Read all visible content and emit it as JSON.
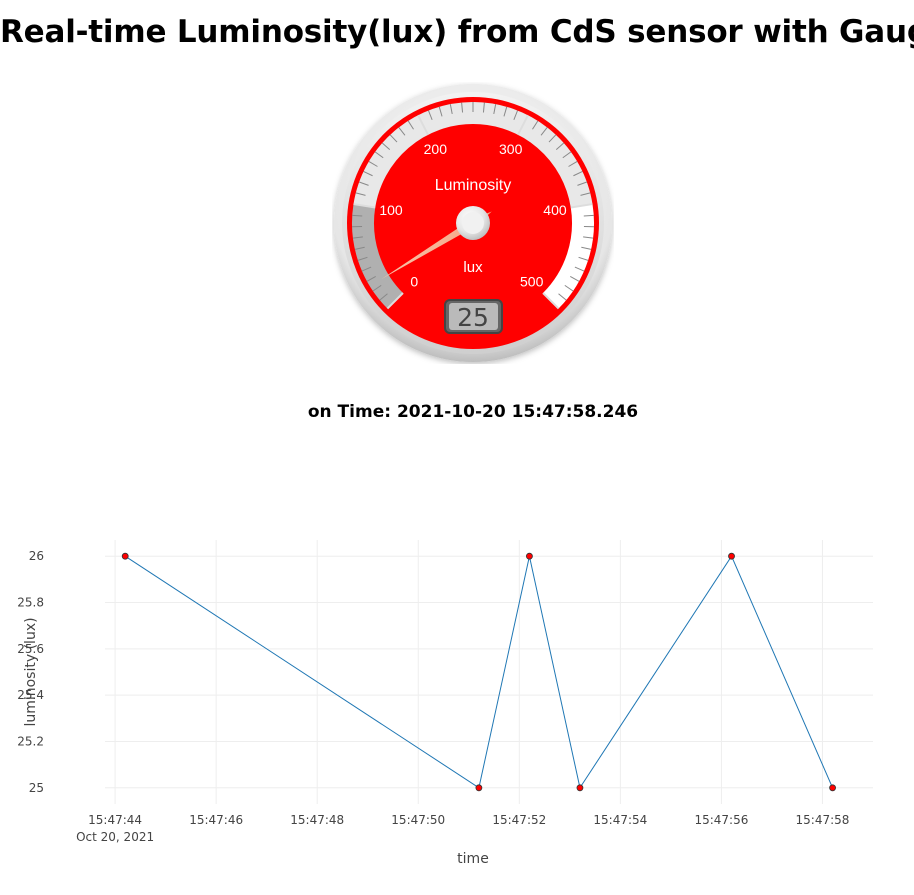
{
  "page": {
    "title": "Real-time Luminosity(lux) from CdS sensor with Gauge",
    "time_prefix": "on Time: ",
    "time_value": "2021-10-20 15:47:58.246"
  },
  "gauge": {
    "title": "Luminosity",
    "units": "lux",
    "min": 0,
    "max": 500,
    "value": 25,
    "value_text": "25",
    "major_ticks": [
      "0",
      "100",
      "200",
      "300",
      "400",
      "500"
    ],
    "colors": {
      "plate": "#ff0000",
      "highlight_low": "#b0b0b0",
      "highlight_mid": "#e8e8e8",
      "highlight_high": "#ffffff",
      "needle": "#f4a584",
      "text": "#ffffff"
    }
  },
  "chart_data": {
    "type": "line",
    "xlabel": "time",
    "ylabel": "luminosity (lux)",
    "date_label": "Oct 20, 2021",
    "x_tick_labels": [
      "15:47:44",
      "15:47:46",
      "15:47:48",
      "15:47:50",
      "15:47:52",
      "15:47:54",
      "15:47:56",
      "15:47:58"
    ],
    "y_tick_labels": [
      "25",
      "25.2",
      "25.4",
      "25.6",
      "25.8",
      "26"
    ],
    "y_ticks": [
      25,
      25.2,
      25.4,
      25.6,
      25.8,
      26
    ],
    "xlim": [
      "15:47:43.8",
      "15:47:59.0"
    ],
    "ylim": [
      24.93,
      26.07
    ],
    "grid": true,
    "series": [
      {
        "x": [
          "15:47:44.2",
          "15:47:51.2",
          "15:47:52.2",
          "15:47:53.2",
          "15:47:56.2",
          "15:47:58.2"
        ],
        "y": [
          26,
          25,
          26,
          25,
          26,
          25
        ],
        "line_color": "#1f77b4",
        "marker_color": "#ff0000"
      }
    ]
  }
}
